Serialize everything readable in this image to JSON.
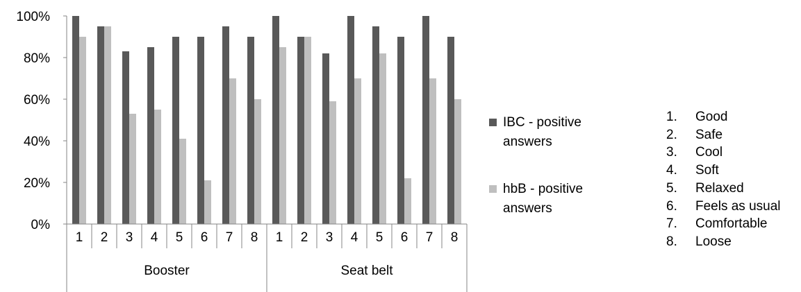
{
  "chart_data": {
    "type": "bar",
    "y_ticks": [
      "0%",
      "20%",
      "40%",
      "60%",
      "80%",
      "100%"
    ],
    "ylim": [
      0,
      100
    ],
    "groups": [
      {
        "label": "Booster",
        "categories": [
          "1",
          "2",
          "3",
          "4",
          "5",
          "6",
          "7",
          "8"
        ]
      },
      {
        "label": "Seat belt",
        "categories": [
          "1",
          "2",
          "3",
          "4",
          "5",
          "6",
          "7",
          "8"
        ]
      }
    ],
    "series": [
      {
        "name": "IBC - positive answers",
        "color": "#595959",
        "values": [
          100,
          95,
          83,
          85,
          90,
          90,
          95,
          90,
          100,
          90,
          82,
          100,
          95,
          90,
          100,
          90
        ]
      },
      {
        "name": "hbB - positive answers",
        "color": "#bfbfbf",
        "values": [
          90,
          95,
          53,
          55,
          41,
          21,
          70,
          60,
          85,
          90,
          59,
          70,
          82,
          22,
          70,
          60
        ]
      }
    ],
    "legend_position": "right"
  },
  "legend": {
    "items": [
      {
        "line1": "IBC - positive",
        "line2": "answers",
        "color": "#595959"
      },
      {
        "line1": "hbB - positive",
        "line2": "answers",
        "color": "#bfbfbf"
      }
    ]
  },
  "key": {
    "items": [
      {
        "num": "1.",
        "label": "Good"
      },
      {
        "num": "2.",
        "label": "Safe"
      },
      {
        "num": "3.",
        "label": "Cool"
      },
      {
        "num": "4.",
        "label": "Soft"
      },
      {
        "num": "5.",
        "label": "Relaxed"
      },
      {
        "num": "6.",
        "label": "Feels as usual"
      },
      {
        "num": "7.",
        "label": "Comfortable"
      },
      {
        "num": "8.",
        "label": "Loose"
      }
    ]
  }
}
